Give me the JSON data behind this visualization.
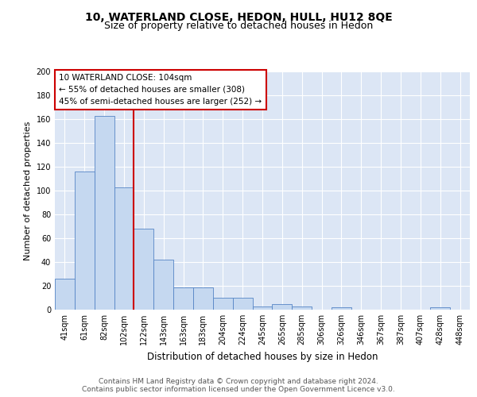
{
  "title": "10, WATERLAND CLOSE, HEDON, HULL, HU12 8QE",
  "subtitle": "Size of property relative to detached houses in Hedon",
  "xlabel": "Distribution of detached houses by size in Hedon",
  "ylabel": "Number of detached properties",
  "categories": [
    "41sqm",
    "61sqm",
    "82sqm",
    "102sqm",
    "122sqm",
    "143sqm",
    "163sqm",
    "183sqm",
    "204sqm",
    "224sqm",
    "245sqm",
    "265sqm",
    "285sqm",
    "306sqm",
    "326sqm",
    "346sqm",
    "367sqm",
    "387sqm",
    "407sqm",
    "428sqm",
    "448sqm"
  ],
  "values": [
    26,
    116,
    163,
    103,
    68,
    42,
    19,
    19,
    10,
    10,
    3,
    5,
    3,
    0,
    2,
    0,
    0,
    0,
    0,
    2,
    0
  ],
  "bar_color": "#c5d8f0",
  "bar_edge_color": "#5585c5",
  "red_line_index": 3,
  "annotation_line1": "10 WATERLAND CLOSE: 104sqm",
  "annotation_line2": "← 55% of detached houses are smaller (308)",
  "annotation_line3": "45% of semi-detached houses are larger (252) →",
  "annotation_box_color": "#ffffff",
  "annotation_box_edge": "#cc0000",
  "ylim": [
    0,
    200
  ],
  "yticks": [
    0,
    20,
    40,
    60,
    80,
    100,
    120,
    140,
    160,
    180,
    200
  ],
  "background_color": "#dce6f5",
  "plot_bg_color": "#dce6f5",
  "footer": "Contains HM Land Registry data © Crown copyright and database right 2024.\nContains public sector information licensed under the Open Government Licence v3.0.",
  "title_fontsize": 10,
  "subtitle_fontsize": 9,
  "xlabel_fontsize": 8.5,
  "ylabel_fontsize": 8,
  "tick_fontsize": 7,
  "annotation_fontsize": 7.5,
  "footer_fontsize": 6.5
}
